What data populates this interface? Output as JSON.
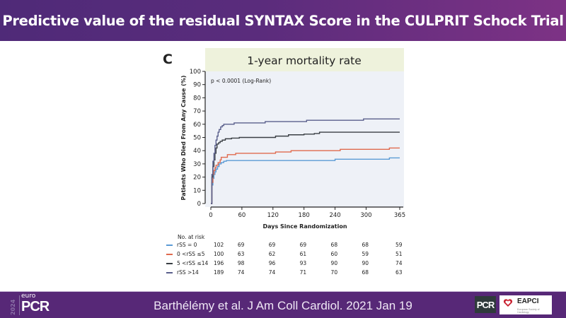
{
  "slide": {
    "title": "Predictive value of the residual SYNTAX Score in the CULPRIT Schock Trial",
    "panel_letter": "C",
    "citation": "Barthélémy et al. J Am Coll Cardiol. 2021 Jan 19",
    "logos": {
      "europcr_year": "2024",
      "europcr_euro": "euro",
      "europcr_pcr": "PCR",
      "pcr": "PCR",
      "eapci": "EAPCI",
      "eapci_sub": "European Society of Cardiology"
    },
    "colors": {
      "header_start": "#4f2a78",
      "header_end": "#7d3285",
      "footer": "#572877",
      "plot_bg": "#eef1f7",
      "title_band": "#eef2dc"
    }
  },
  "chart_data": {
    "type": "line",
    "subtype": "kaplan-meier-cumulative-incidence",
    "title": "1-year mortality rate",
    "annotation": "p < 0.0001 (Log-Rank)",
    "xlabel": "Days Since Randomization",
    "ylabel": "Patients Who Died From Any Cause (%)",
    "xlim": [
      0,
      365
    ],
    "ylim": [
      0,
      100
    ],
    "xticks": [
      0,
      60,
      120,
      180,
      240,
      300,
      365
    ],
    "yticks": [
      0,
      10,
      20,
      30,
      40,
      50,
      60,
      70,
      80,
      90,
      100
    ],
    "grid": false,
    "series": [
      {
        "name": "rSS = 0",
        "color": "#5b9bd5",
        "points": [
          [
            0,
            0
          ],
          [
            2,
            14
          ],
          [
            4,
            19
          ],
          [
            6,
            22
          ],
          [
            8,
            24
          ],
          [
            10,
            26
          ],
          [
            13,
            28
          ],
          [
            16,
            30
          ],
          [
            20,
            31
          ],
          [
            25,
            32
          ],
          [
            30,
            32.5
          ],
          [
            90,
            32.5
          ],
          [
            150,
            32.5
          ],
          [
            240,
            33.5
          ],
          [
            340,
            33.5
          ],
          [
            345,
            34.5
          ],
          [
            365,
            34.5
          ]
        ]
      },
      {
        "name": "0 <rSS ≤5",
        "color": "#e06a4e",
        "points": [
          [
            0,
            0
          ],
          [
            2,
            16
          ],
          [
            4,
            22
          ],
          [
            6,
            25
          ],
          [
            8,
            27
          ],
          [
            10,
            29
          ],
          [
            14,
            31
          ],
          [
            18,
            33
          ],
          [
            20,
            35
          ],
          [
            30,
            35
          ],
          [
            32,
            37
          ],
          [
            45,
            37
          ],
          [
            48,
            38
          ],
          [
            120,
            38
          ],
          [
            125,
            39
          ],
          [
            150,
            39
          ],
          [
            155,
            40
          ],
          [
            245,
            40
          ],
          [
            250,
            41
          ],
          [
            340,
            41
          ],
          [
            345,
            42
          ],
          [
            365,
            42
          ]
        ]
      },
      {
        "name": "5 <rSS ≤14",
        "color": "#3a3f44",
        "points": [
          [
            0,
            0
          ],
          [
            2,
            20
          ],
          [
            4,
            28
          ],
          [
            6,
            33
          ],
          [
            8,
            38
          ],
          [
            10,
            42
          ],
          [
            12,
            45
          ],
          [
            15,
            46
          ],
          [
            18,
            47
          ],
          [
            22,
            48
          ],
          [
            28,
            49
          ],
          [
            40,
            49.5
          ],
          [
            55,
            50
          ],
          [
            120,
            50
          ],
          [
            125,
            51
          ],
          [
            150,
            52
          ],
          [
            180,
            52.5
          ],
          [
            200,
            53
          ],
          [
            210,
            54
          ],
          [
            365,
            54
          ]
        ]
      },
      {
        "name": "rSS >14",
        "color": "#5a5f8c",
        "points": [
          [
            0,
            0
          ],
          [
            2,
            22
          ],
          [
            4,
            32
          ],
          [
            6,
            38
          ],
          [
            8,
            44
          ],
          [
            10,
            48
          ],
          [
            12,
            51
          ],
          [
            14,
            54
          ],
          [
            16,
            56
          ],
          [
            19,
            58
          ],
          [
            22,
            59
          ],
          [
            25,
            60
          ],
          [
            40,
            60
          ],
          [
            45,
            61
          ],
          [
            100,
            61
          ],
          [
            105,
            62
          ],
          [
            180,
            62
          ],
          [
            185,
            63
          ],
          [
            290,
            63
          ],
          [
            295,
            64
          ],
          [
            365,
            64
          ]
        ]
      }
    ],
    "risk_table": {
      "label": "No. at risk",
      "timepoints": [
        0,
        60,
        120,
        180,
        240,
        300,
        365
      ],
      "rows": [
        {
          "name": "rSS = 0",
          "color": "#5b9bd5",
          "values": [
            102,
            69,
            69,
            69,
            68,
            68,
            59
          ]
        },
        {
          "name": "0 <rSS ≤5",
          "color": "#e06a4e",
          "values": [
            100,
            63,
            62,
            61,
            60,
            59,
            51
          ]
        },
        {
          "name": "5 <rSS ≤14",
          "color": "#3a3f44",
          "values": [
            196,
            98,
            96,
            93,
            90,
            90,
            74
          ]
        },
        {
          "name": "rSS >14",
          "color": "#5a5f8c",
          "values": [
            189,
            74,
            74,
            71,
            70,
            68,
            63
          ]
        }
      ]
    }
  }
}
